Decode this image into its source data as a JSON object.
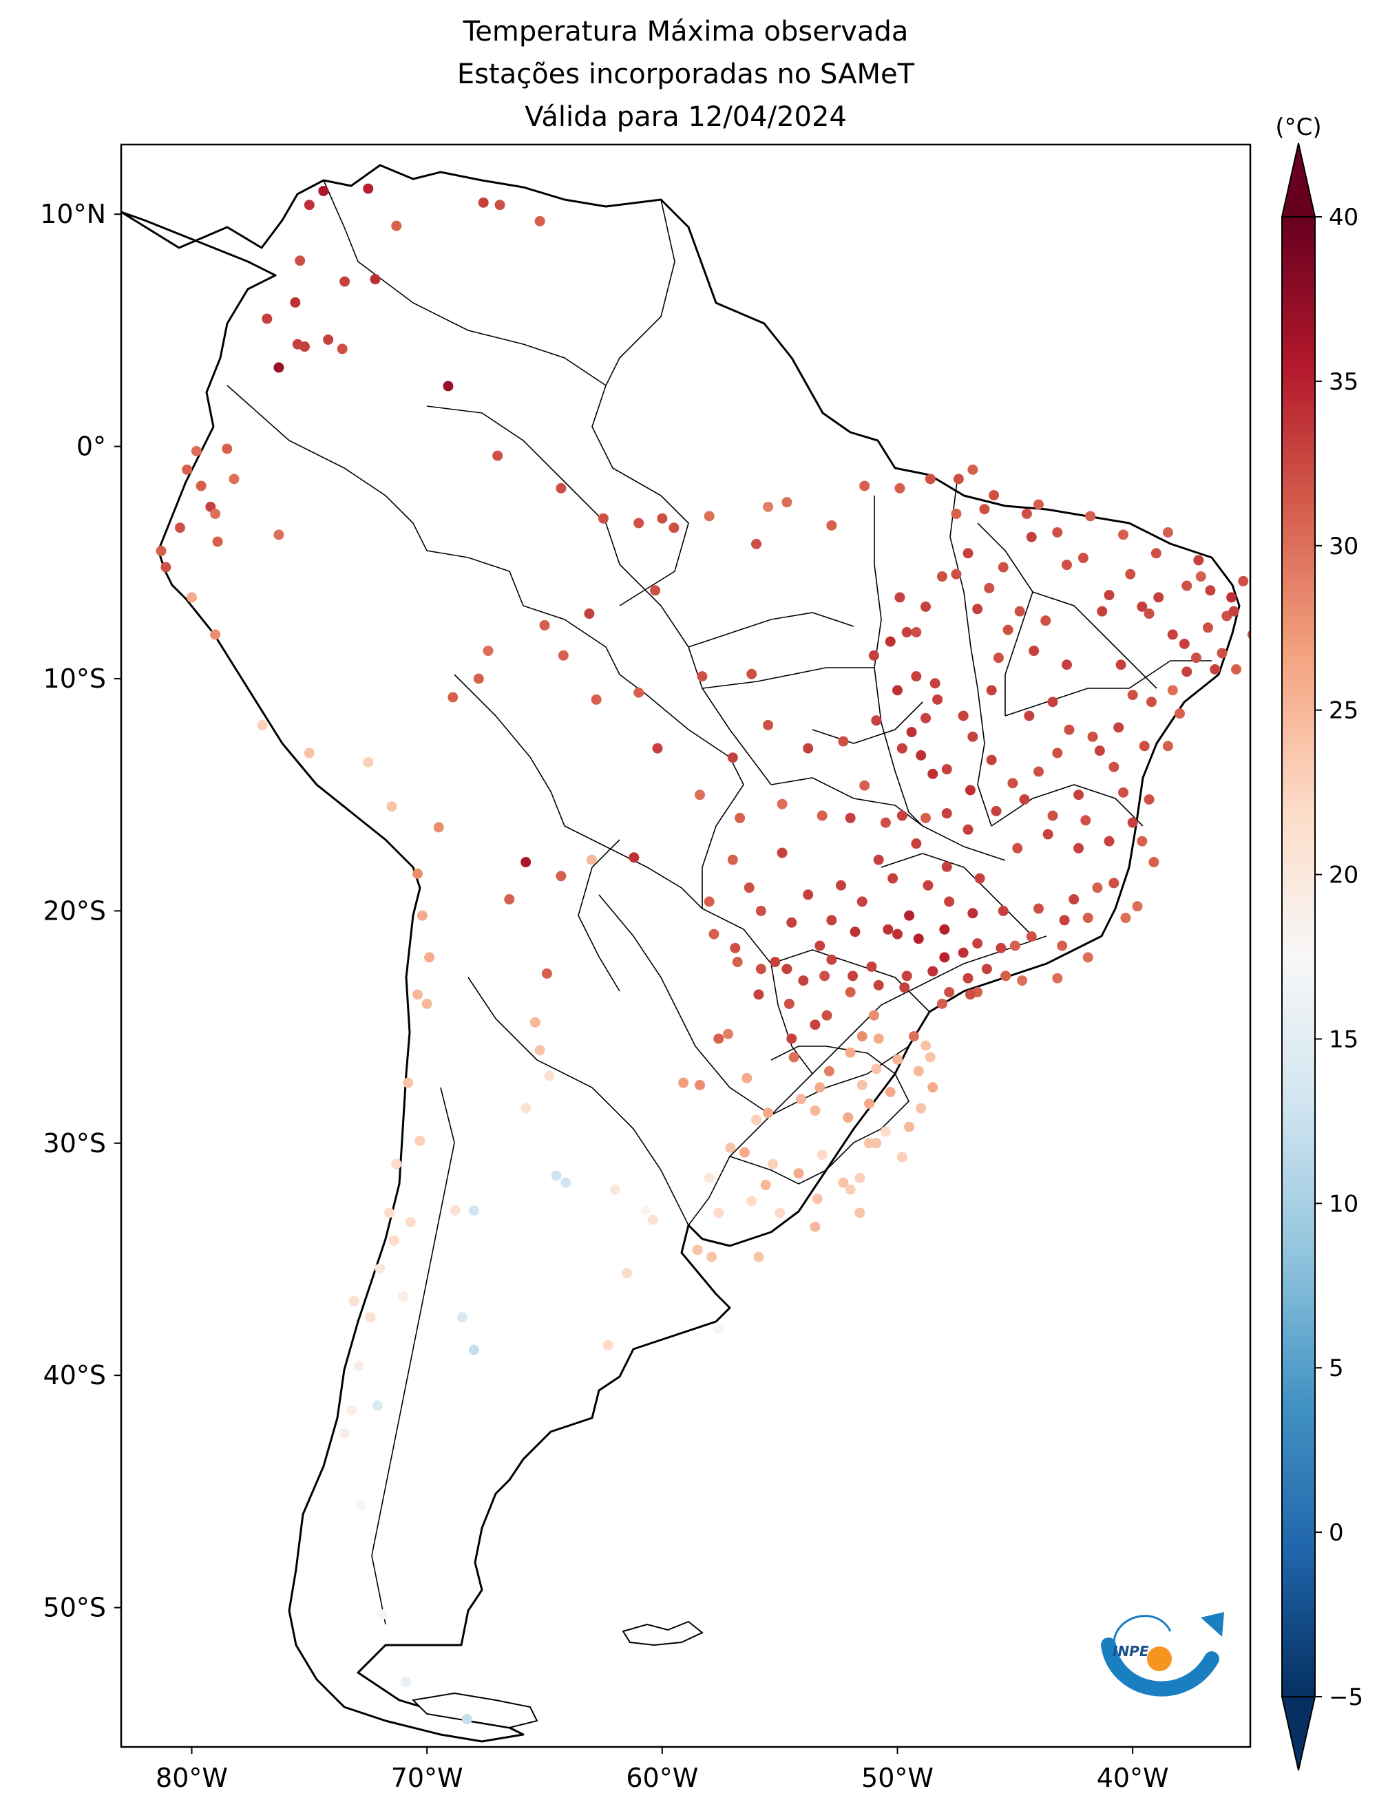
{
  "title": {
    "line1": "Temperatura Máxima observada",
    "line2": "Estações incorporadas no SAMeT",
    "line3": "Válida para 12/04/2024"
  },
  "map": {
    "extent": {
      "lon_min": -83,
      "lon_max": -35,
      "lat_min": -56,
      "lat_max": 13
    },
    "lat_ticks": [
      {
        "value": 10,
        "label": "10°N"
      },
      {
        "value": 0,
        "label": "0°"
      },
      {
        "value": -10,
        "label": "10°S"
      },
      {
        "value": -20,
        "label": "20°S"
      },
      {
        "value": -30,
        "label": "30°S"
      },
      {
        "value": -40,
        "label": "40°S"
      },
      {
        "value": -50,
        "label": "50°S"
      }
    ],
    "lon_ticks": [
      {
        "value": -80,
        "label": "80°W"
      },
      {
        "value": -70,
        "label": "70°W"
      },
      {
        "value": -60,
        "label": "60°W"
      },
      {
        "value": -50,
        "label": "50°W"
      },
      {
        "value": -40,
        "label": "40°W"
      }
    ]
  },
  "colorbar": {
    "unit": "(°C)",
    "min": -5,
    "max": 40,
    "ticks": [
      {
        "value": 40,
        "label": "40"
      },
      {
        "value": 35,
        "label": "35"
      },
      {
        "value": 30,
        "label": "30"
      },
      {
        "value": 25,
        "label": "25"
      },
      {
        "value": 20,
        "label": "20"
      },
      {
        "value": 15,
        "label": "15"
      },
      {
        "value": 10,
        "label": "10"
      },
      {
        "value": 5,
        "label": "5"
      },
      {
        "value": 0,
        "label": "0"
      },
      {
        "value": -5,
        "label": "−5"
      }
    ],
    "colors": [
      "#053061",
      "#2166ac",
      "#4393c3",
      "#92c5de",
      "#d1e5f0",
      "#f7f7f7",
      "#fddbc7",
      "#f4a582",
      "#d6604d",
      "#b2182b",
      "#67001f"
    ]
  },
  "logo": {
    "text": "INPE"
  },
  "stations": [
    [
      -74.4,
      11.0,
      36
    ],
    [
      -72.5,
      11.1,
      35
    ],
    [
      -75.0,
      10.4,
      34
    ],
    [
      -71.3,
      9.5,
      31
    ],
    [
      -75.4,
      8.0,
      32
    ],
    [
      -72.2,
      7.2,
      34
    ],
    [
      -73.5,
      7.1,
      33
    ],
    [
      -75.6,
      6.2,
      34
    ],
    [
      -76.8,
      5.5,
      33
    ],
    [
      -75.5,
      4.4,
      33
    ],
    [
      -75.2,
      4.3,
      33
    ],
    [
      -76.3,
      3.4,
      37
    ],
    [
      -74.2,
      4.6,
      33
    ],
    [
      -73.6,
      4.2,
      32
    ],
    [
      -67.6,
      10.5,
      33
    ],
    [
      -66.9,
      10.4,
      32
    ],
    [
      -65.2,
      9.7,
      31
    ],
    [
      -69.1,
      2.6,
      37
    ],
    [
      -79.8,
      -0.2,
      30
    ],
    [
      -80.2,
      -1.0,
      31
    ],
    [
      -78.5,
      -0.1,
      31
    ],
    [
      -78.2,
      -1.4,
      30
    ],
    [
      -79.2,
      -2.6,
      33
    ],
    [
      -79.6,
      -1.7,
      31
    ],
    [
      -79.0,
      -2.9,
      30
    ],
    [
      -80.5,
      -3.5,
      32
    ],
    [
      -81.3,
      -4.5,
      31
    ],
    [
      -81.1,
      -5.2,
      32
    ],
    [
      -78.9,
      -4.1,
      31
    ],
    [
      -80.0,
      -6.5,
      26
    ],
    [
      -79.0,
      -8.1,
      28
    ],
    [
      -76.3,
      -3.8,
      30
    ],
    [
      -77.0,
      -12.0,
      23
    ],
    [
      -67.0,
      -0.4,
      32
    ],
    [
      -64.3,
      -1.8,
      32
    ],
    [
      -62.5,
      -3.1,
      32
    ],
    [
      -61.0,
      -3.3,
      32
    ],
    [
      -60.0,
      -3.1,
      32
    ],
    [
      -59.5,
      -3.5,
      32
    ],
    [
      -58.0,
      -3.0,
      30
    ],
    [
      -55.5,
      -2.6,
      29
    ],
    [
      -54.7,
      -2.4,
      30
    ],
    [
      -56.0,
      -4.2,
      32
    ],
    [
      -52.8,
      -3.4,
      31
    ],
    [
      -51.4,
      -1.7,
      31
    ],
    [
      -49.9,
      -1.8,
      31
    ],
    [
      -48.6,
      -1.4,
      32
    ],
    [
      -60.3,
      -6.2,
      32
    ],
    [
      -63.1,
      -7.2,
      33
    ],
    [
      -65.0,
      -7.7,
      31
    ],
    [
      -67.4,
      -8.8,
      30
    ],
    [
      -68.9,
      -10.8,
      31
    ],
    [
      -67.8,
      -10.0,
      31
    ],
    [
      -64.2,
      -9.0,
      31
    ],
    [
      -62.8,
      -10.9,
      31
    ],
    [
      -61.0,
      -10.6,
      31
    ],
    [
      -60.2,
      -13.0,
      33
    ],
    [
      -58.3,
      -9.9,
      32
    ],
    [
      -56.2,
      -9.8,
      32
    ],
    [
      -57.0,
      -13.4,
      33
    ],
    [
      -55.5,
      -12.0,
      32
    ],
    [
      -53.8,
      -13.0,
      33
    ],
    [
      -52.3,
      -12.7,
      32
    ],
    [
      -58.4,
      -15.0,
      30
    ],
    [
      -56.7,
      -16.0,
      31
    ],
    [
      -54.9,
      -15.4,
      30
    ],
    [
      -53.2,
      -15.9,
      31
    ],
    [
      -51.4,
      -14.6,
      31
    ],
    [
      -50.5,
      -16.2,
      32
    ],
    [
      -48.8,
      -16.0,
      31
    ],
    [
      -47.9,
      -15.8,
      33
    ],
    [
      -48.5,
      -14.1,
      34
    ],
    [
      -49.8,
      -13.0,
      33
    ],
    [
      -46.8,
      -12.5,
      33
    ],
    [
      -48.4,
      -10.2,
      33
    ],
    [
      -49.2,
      -8.0,
      32
    ],
    [
      -47.5,
      -5.5,
      32
    ],
    [
      -45.5,
      -5.2,
      32
    ],
    [
      -44.0,
      -2.5,
      31
    ],
    [
      -42.8,
      -5.1,
      32
    ],
    [
      -40.4,
      -3.8,
      31
    ],
    [
      -38.5,
      -3.7,
      31
    ],
    [
      -37.2,
      -4.9,
      33
    ],
    [
      -35.8,
      -6.5,
      34
    ],
    [
      -34.9,
      -8.1,
      32
    ],
    [
      -36.5,
      -9.6,
      33
    ],
    [
      -38.5,
      -12.9,
      31
    ],
    [
      -40.4,
      -14.9,
      32
    ],
    [
      -39.1,
      -17.9,
      31
    ],
    [
      -40.3,
      -20.3,
      30
    ],
    [
      -43.2,
      -22.9,
      30
    ],
    [
      -44.7,
      -23.0,
      30
    ],
    [
      -46.6,
      -23.5,
      31
    ],
    [
      -47.0,
      -22.9,
      33
    ],
    [
      -48.0,
      -22.0,
      35
    ],
    [
      -49.1,
      -21.2,
      35
    ],
    [
      -50.4,
      -20.8,
      34
    ],
    [
      -51.8,
      -20.9,
      34
    ],
    [
      -52.8,
      -22.1,
      33
    ],
    [
      -51.1,
      -22.4,
      33
    ],
    [
      -49.7,
      -23.3,
      33
    ],
    [
      -48.1,
      -24.0,
      31
    ],
    [
      -49.3,
      -25.4,
      30
    ],
    [
      -51.5,
      -25.4,
      28
    ],
    [
      -53.5,
      -24.9,
      33
    ],
    [
      -54.5,
      -25.5,
      33
    ],
    [
      -52.9,
      -26.9,
      29
    ],
    [
      -50.3,
      -27.8,
      26
    ],
    [
      -48.5,
      -27.6,
      26
    ],
    [
      -51.2,
      -28.3,
      26
    ],
    [
      -53.5,
      -28.6,
      25
    ],
    [
      -55.5,
      -28.7,
      26
    ],
    [
      -56.5,
      -30.4,
      26
    ],
    [
      -54.2,
      -31.3,
      26
    ],
    [
      -52.3,
      -31.7,
      24
    ],
    [
      -51.2,
      -30.0,
      24
    ],
    [
      -49.5,
      -29.3,
      25
    ],
    [
      -53.5,
      -33.6,
      25
    ],
    [
      -55.9,
      -34.9,
      24
    ],
    [
      -57.2,
      -25.3,
      29
    ],
    [
      -57.6,
      -25.5,
      31
    ],
    [
      -59.1,
      -27.4,
      27
    ],
    [
      -58.4,
      -27.5,
      28
    ],
    [
      -54.9,
      -17.5,
      33
    ],
    [
      -56.3,
      -19.0,
      32
    ],
    [
      -54.5,
      -20.5,
      33
    ],
    [
      -55.2,
      -22.2,
      33
    ],
    [
      -52.4,
      -18.9,
      33
    ],
    [
      -50.8,
      -17.8,
      33
    ],
    [
      -48.7,
      -18.9,
      33
    ],
    [
      -46.5,
      -18.6,
      33
    ],
    [
      -44.0,
      -19.9,
      32
    ],
    [
      -42.5,
      -19.5,
      33
    ],
    [
      -44.9,
      -17.3,
      32
    ],
    [
      -43.6,
      -16.7,
      33
    ],
    [
      -45.1,
      -14.5,
      32
    ],
    [
      -43.2,
      -13.2,
      32
    ],
    [
      -41.7,
      -12.5,
      32
    ],
    [
      -44.4,
      -11.6,
      33
    ],
    [
      -45.7,
      -9.1,
      32
    ],
    [
      -42.8,
      -9.4,
      33
    ],
    [
      -40.5,
      -9.4,
      33
    ],
    [
      -41.3,
      -7.1,
      33
    ],
    [
      -43.7,
      -7.5,
      32
    ],
    [
      -39.3,
      -7.2,
      32
    ],
    [
      -37.3,
      -9.1,
      32
    ],
    [
      -38.3,
      -10.5,
      30
    ],
    [
      -40.0,
      -10.7,
      32
    ],
    [
      -42.0,
      -16.1,
      32
    ],
    [
      -41.5,
      -19.0,
      31
    ],
    [
      -39.8,
      -19.8,
      30
    ],
    [
      -41.9,
      -22.0,
      30
    ],
    [
      -45.4,
      -22.8,
      31
    ],
    [
      -46.6,
      -21.4,
      33
    ],
    [
      -47.8,
      -19.6,
      33
    ],
    [
      -49.8,
      -15.9,
      33
    ],
    [
      -52.0,
      -16.0,
      33
    ],
    [
      -47.0,
      -16.5,
      33
    ],
    [
      -45.5,
      -20.0,
      33
    ],
    [
      -43.0,
      -21.5,
      31
    ],
    [
      -37.1,
      -5.6,
      31
    ],
    [
      -36.0,
      -7.3,
      32
    ],
    [
      -38.9,
      -6.5,
      33
    ],
    [
      -40.1,
      -5.5,
      32
    ],
    [
      -41.8,
      -3.0,
      31
    ],
    [
      -47.4,
      -1.4,
      32
    ],
    [
      -46.3,
      -2.7,
      32
    ],
    [
      -44.3,
      -3.9,
      33
    ],
    [
      -46.6,
      -7.0,
      33
    ],
    [
      -44.8,
      -7.1,
      32
    ],
    [
      -46.0,
      -10.5,
      33
    ],
    [
      -47.2,
      -11.6,
      33
    ],
    [
      -48.8,
      -11.7,
      33
    ],
    [
      -48.3,
      -10.9,
      33
    ],
    [
      -49.4,
      -12.3,
      34
    ],
    [
      -50.9,
      -11.8,
      33
    ],
    [
      -51.0,
      -9.0,
      33
    ],
    [
      -49.9,
      -6.5,
      33
    ],
    [
      -50.3,
      -8.4,
      34
    ],
    [
      -49.2,
      -9.9,
      33
    ],
    [
      -46.0,
      -13.5,
      33
    ],
    [
      -44.0,
      -14.0,
      32
    ],
    [
      -42.3,
      -15.0,
      33
    ],
    [
      -40.8,
      -13.8,
      32
    ],
    [
      -39.5,
      -12.9,
      32
    ],
    [
      -38.3,
      -8.1,
      33
    ],
    [
      -39.0,
      -4.6,
      32
    ],
    [
      -61.2,
      -17.7,
      34
    ],
    [
      -64.3,
      -18.5,
      31
    ],
    [
      -65.8,
      -17.9,
      36
    ],
    [
      -66.5,
      -19.5,
      31
    ],
    [
      -63.0,
      -17.8,
      25
    ],
    [
      -64.9,
      -22.7,
      31
    ],
    [
      -65.4,
      -24.8,
      25
    ],
    [
      -65.2,
      -26.0,
      24
    ],
    [
      -64.8,
      -27.1,
      21
    ],
    [
      -65.8,
      -28.5,
      21
    ],
    [
      -64.5,
      -31.4,
      13
    ],
    [
      -64.1,
      -31.7,
      13
    ],
    [
      -60.7,
      -32.9,
      18
    ],
    [
      -58.5,
      -34.6,
      24
    ],
    [
      -57.9,
      -34.9,
      24
    ],
    [
      -61.5,
      -35.6,
      22
    ],
    [
      -57.6,
      -38.0,
      18
    ],
    [
      -62.3,
      -38.7,
      22
    ],
    [
      -68.0,
      -32.9,
      13
    ],
    [
      -68.8,
      -32.9,
      21
    ],
    [
      -68.5,
      -37.5,
      14
    ],
    [
      -68.0,
      -38.9,
      12
    ],
    [
      -70.4,
      -18.4,
      28
    ],
    [
      -70.2,
      -20.2,
      26
    ],
    [
      -70.4,
      -23.6,
      25
    ],
    [
      -69.9,
      -22.0,
      26
    ],
    [
      -70.8,
      -27.4,
      24
    ],
    [
      -70.3,
      -29.9,
      23
    ],
    [
      -71.3,
      -30.9,
      22
    ],
    [
      -71.6,
      -33.0,
      22
    ],
    [
      -70.7,
      -33.4,
      22
    ],
    [
      -71.4,
      -34.2,
      22
    ],
    [
      -72.0,
      -35.4,
      20
    ],
    [
      -71.0,
      -36.6,
      19
    ],
    [
      -72.4,
      -37.5,
      21
    ],
    [
      -73.1,
      -36.8,
      21
    ],
    [
      -72.9,
      -39.6,
      19
    ],
    [
      -73.2,
      -41.5,
      19
    ],
    [
      -72.1,
      -41.3,
      14
    ],
    [
      -73.5,
      -42.5,
      19
    ],
    [
      -72.8,
      -45.6,
      18
    ],
    [
      -71.9,
      -50.3,
      18
    ],
    [
      -70.9,
      -53.2,
      16
    ],
    [
      -68.3,
      -54.8,
      12
    ],
    [
      -70.0,
      -24.0,
      25
    ],
    [
      -69.5,
      -16.4,
      28
    ],
    [
      -71.5,
      -15.5,
      24
    ],
    [
      -72.5,
      -13.6,
      23
    ],
    [
      -75.0,
      -13.2,
      24
    ],
    [
      -62.0,
      -32.0,
      20
    ],
    [
      -60.4,
      -33.3,
      21
    ],
    [
      -58.0,
      -31.5,
      20
    ],
    [
      -56.2,
      -32.5,
      22
    ],
    [
      -57.6,
      -33.0,
      22
    ],
    [
      -55.0,
      -33.0,
      22
    ],
    [
      -53.2,
      -30.5,
      22
    ],
    [
      -52.0,
      -32.0,
      23
    ],
    [
      -51.6,
      -33.0,
      24
    ],
    [
      -55.3,
      -30.9,
      23
    ],
    [
      -56.0,
      -29.0,
      23
    ],
    [
      -50.5,
      -29.5,
      22
    ],
    [
      -49.0,
      -28.5,
      24
    ],
    [
      -51.5,
      -27.5,
      24
    ],
    [
      -50.9,
      -26.8,
      24
    ],
    [
      -49.1,
      -26.9,
      25
    ],
    [
      -48.6,
      -26.3,
      24
    ],
    [
      -50.8,
      -25.5,
      26
    ],
    [
      -51.0,
      -24.5,
      28
    ],
    [
      -52.0,
      -23.5,
      31
    ],
    [
      -53.0,
      -24.5,
      32
    ],
    [
      -54.0,
      -23.0,
      33
    ],
    [
      -54.7,
      -22.5,
      33
    ],
    [
      -53.3,
      -21.5,
      33
    ],
    [
      -50.0,
      -21.0,
      34
    ],
    [
      -49.5,
      -20.2,
      35
    ],
    [
      -48.0,
      -20.8,
      35
    ],
    [
      -47.2,
      -21.8,
      34
    ],
    [
      -46.2,
      -22.5,
      33
    ],
    [
      -45.0,
      -21.5,
      31
    ],
    [
      -46.9,
      -23.6,
      32
    ],
    [
      -47.8,
      -23.5,
      32
    ],
    [
      -48.5,
      -22.6,
      34
    ],
    [
      -49.6,
      -22.8,
      33
    ],
    [
      -50.8,
      -23.2,
      33
    ],
    [
      -51.9,
      -22.8,
      33
    ],
    [
      -53.1,
      -22.8,
      32
    ],
    [
      -54.6,
      -24.0,
      32
    ],
    [
      -55.8,
      -22.5,
      32
    ],
    [
      -56.8,
      -22.2,
      31
    ],
    [
      -57.8,
      -21.0,
      31
    ],
    [
      -47.5,
      -2.9,
      31
    ],
    [
      -46.8,
      -1.0,
      31
    ],
    [
      -45.9,
      -2.1,
      32
    ],
    [
      -44.5,
      -2.9,
      32
    ],
    [
      -43.2,
      -3.7,
      32
    ],
    [
      -42.1,
      -4.8,
      32
    ],
    [
      -41.0,
      -6.4,
      33
    ],
    [
      -39.6,
      -6.9,
      33
    ],
    [
      -37.7,
      -6.0,
      32
    ],
    [
      -36.7,
      -6.2,
      33
    ],
    [
      -35.3,
      -5.8,
      32
    ],
    [
      -35.7,
      -7.1,
      33
    ],
    [
      -36.8,
      -7.8,
      32
    ],
    [
      -37.8,
      -8.5,
      33
    ],
    [
      -36.2,
      -8.9,
      32
    ],
    [
      -35.6,
      -9.6,
      31
    ],
    [
      -37.7,
      -9.7,
      33
    ],
    [
      -38.0,
      -11.5,
      31
    ],
    [
      -39.2,
      -11.0,
      32
    ],
    [
      -40.6,
      -12.1,
      33
    ],
    [
      -41.4,
      -13.1,
      33
    ],
    [
      -42.7,
      -12.2,
      32
    ],
    [
      -43.4,
      -11.0,
      33
    ],
    [
      -44.2,
      -8.8,
      33
    ],
    [
      -45.3,
      -7.9,
      32
    ],
    [
      -46.1,
      -6.1,
      32
    ],
    [
      -47.0,
      -4.6,
      33
    ],
    [
      -48.1,
      -5.6,
      32
    ],
    [
      -48.8,
      -6.9,
      33
    ],
    [
      -49.6,
      -8.0,
      33
    ],
    [
      -50.0,
      -10.5,
      34
    ],
    [
      -49.0,
      -13.3,
      34
    ],
    [
      -47.9,
      -13.9,
      33
    ],
    [
      -46.9,
      -14.8,
      34
    ],
    [
      -45.8,
      -15.7,
      33
    ],
    [
      -44.6,
      -15.2,
      33
    ],
    [
      -43.4,
      -15.9,
      32
    ],
    [
      -42.3,
      -17.3,
      33
    ],
    [
      -41.0,
      -17.0,
      33
    ],
    [
      -40.0,
      -16.2,
      33
    ],
    [
      -39.3,
      -15.2,
      32
    ],
    [
      -39.6,
      -17.0,
      31
    ],
    [
      -40.8,
      -18.8,
      32
    ],
    [
      -41.9,
      -20.3,
      31
    ],
    [
      -42.9,
      -20.4,
      33
    ],
    [
      -44.3,
      -21.1,
      32
    ],
    [
      -45.6,
      -21.6,
      33
    ],
    [
      -46.8,
      -20.1,
      34
    ],
    [
      -47.9,
      -18.1,
      33
    ],
    [
      -49.2,
      -17.1,
      33
    ],
    [
      -50.2,
      -18.6,
      33
    ],
    [
      -51.5,
      -19.6,
      33
    ],
    [
      -52.8,
      -20.4,
      33
    ],
    [
      -53.8,
      -19.3,
      33
    ],
    [
      -55.8,
      -20.0,
      32
    ],
    [
      -57.0,
      -17.8,
      31
    ],
    [
      -58.0,
      -19.6,
      31
    ],
    [
      -56.9,
      -21.6,
      32
    ],
    [
      -55.9,
      -23.6,
      33
    ],
    [
      -54.4,
      -26.3,
      30
    ],
    [
      -53.3,
      -27.6,
      26
    ],
    [
      -52.1,
      -28.9,
      26
    ],
    [
      -50.9,
      -30.0,
      24
    ],
    [
      -49.8,
      -30.6,
      23
    ],
    [
      -51.6,
      -31.5,
      23
    ],
    [
      -53.4,
      -32.4,
      24
    ],
    [
      -55.6,
      -31.8,
      25
    ],
    [
      -57.1,
      -30.2,
      24
    ],
    [
      -56.4,
      -27.2,
      26
    ],
    [
      -54.1,
      -28.1,
      25
    ],
    [
      -52.0,
      -26.1,
      26
    ],
    [
      -50.0,
      -26.4,
      25
    ],
    [
      -48.8,
      -25.8,
      24
    ]
  ]
}
